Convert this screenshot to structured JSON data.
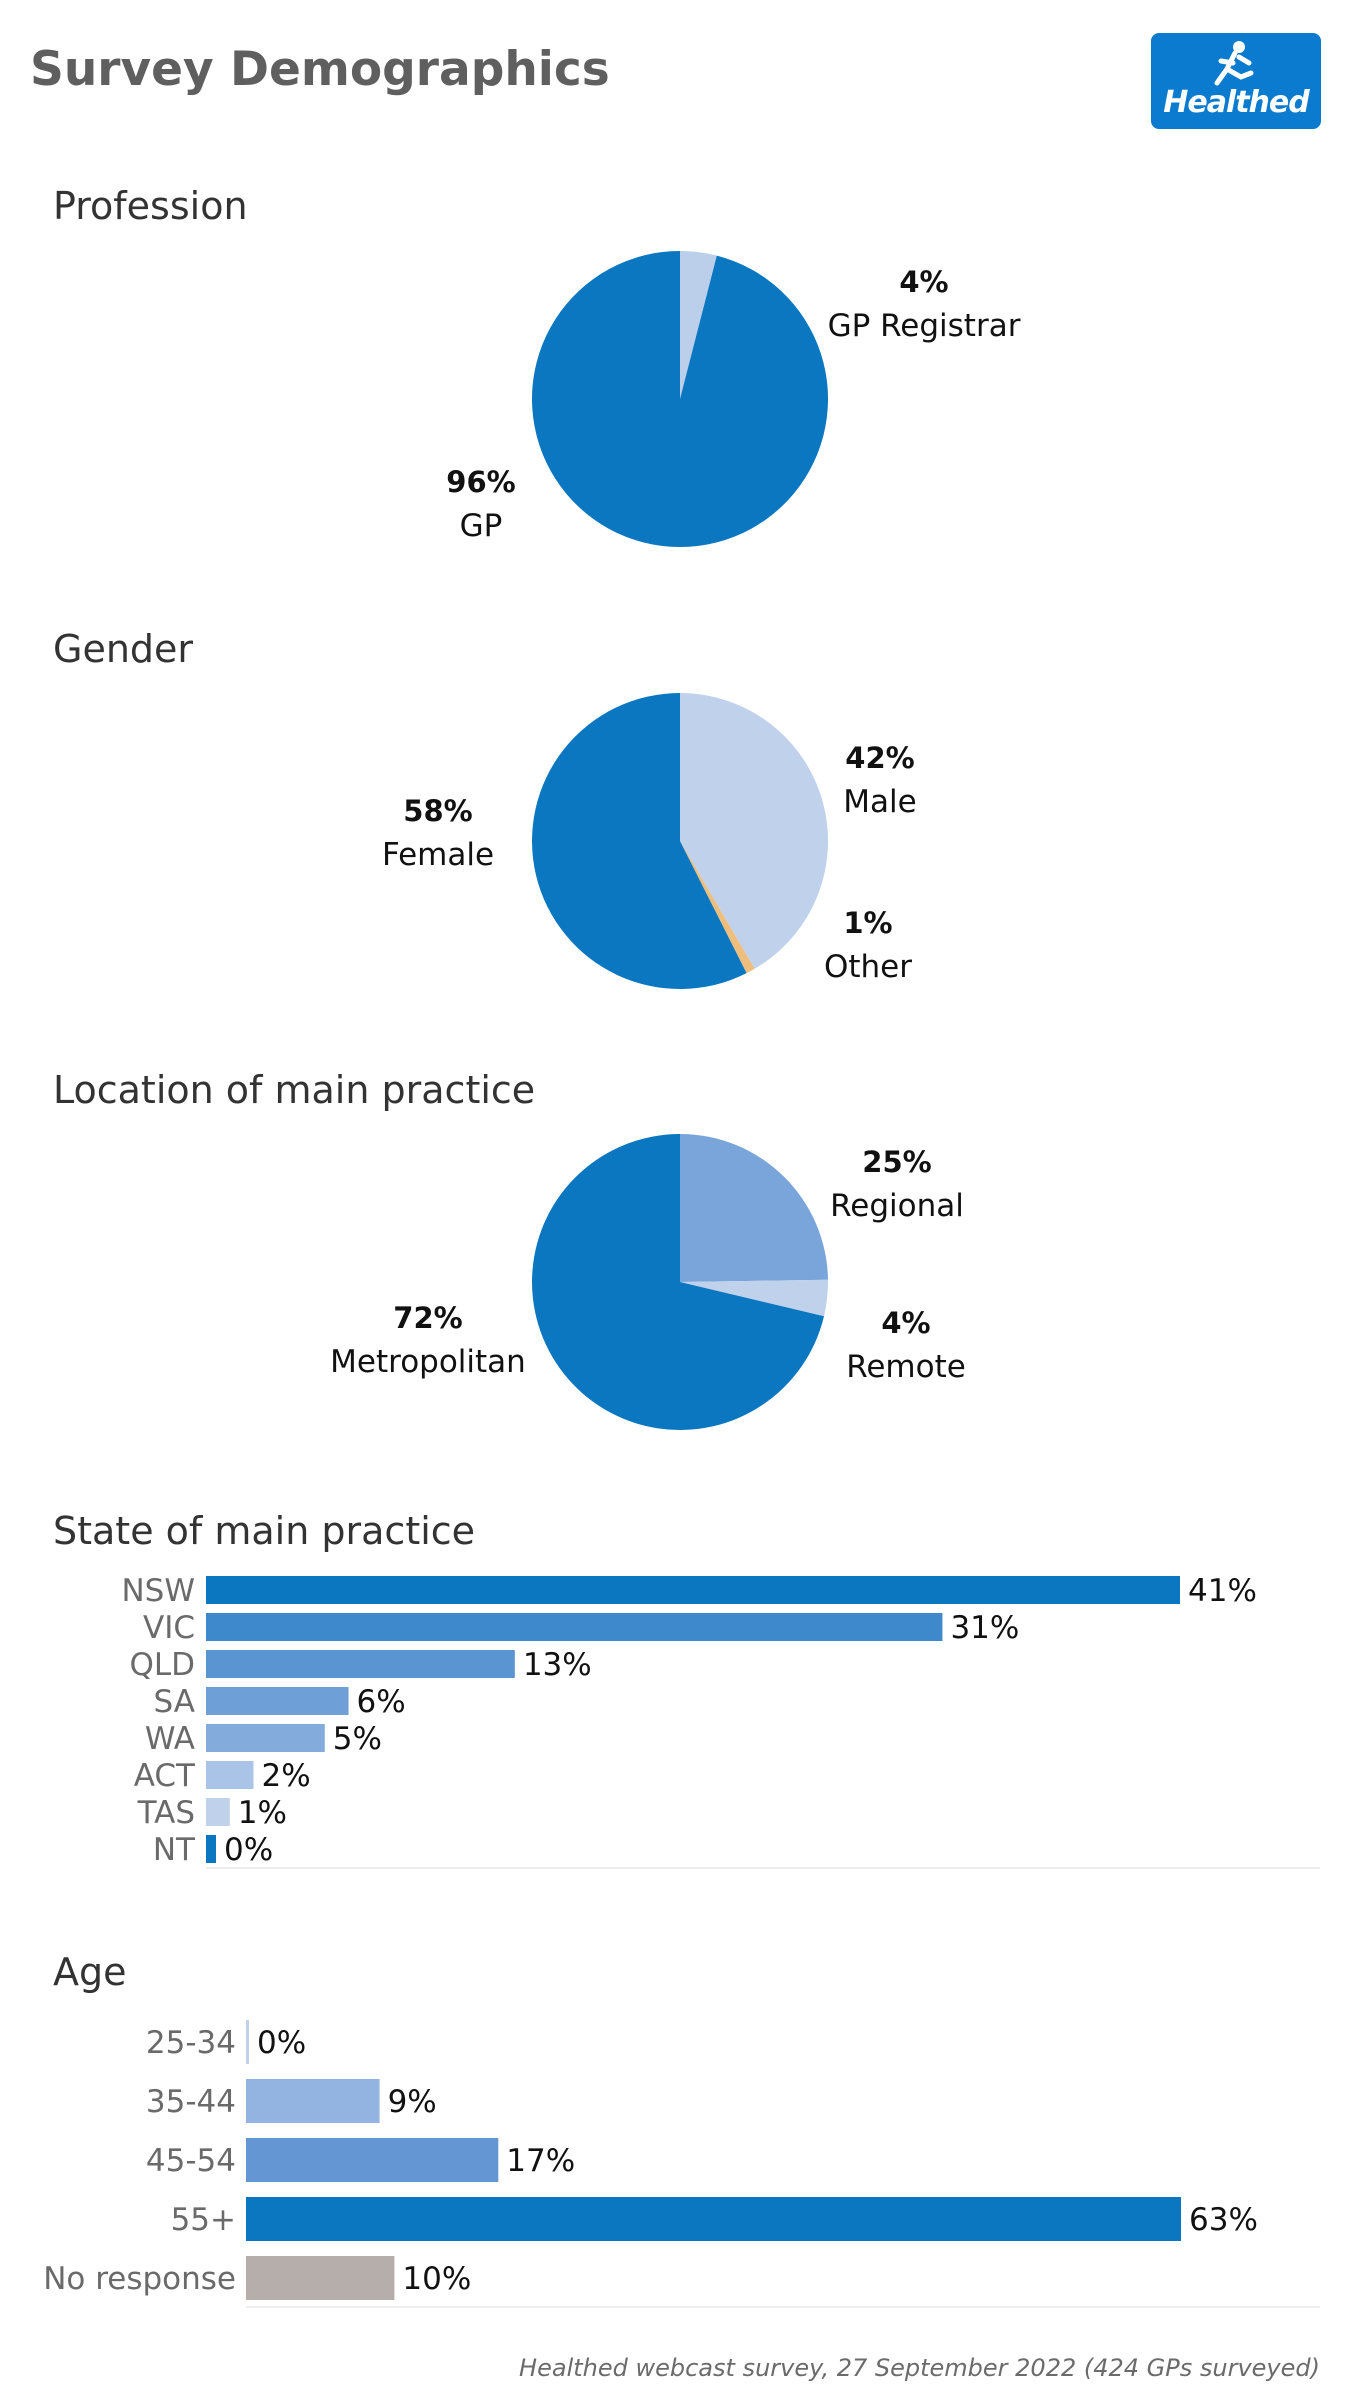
{
  "title": "Survey Demographics",
  "logo": {
    "text": "Healthed",
    "icon": "runner-icon",
    "background": "#0a7bcf"
  },
  "footnote": "Healthed webcast survey, 27 September 2022 (424 GPs surveyed)",
  "chart_data": [
    {
      "type": "pie",
      "title": "Profession",
      "slices": [
        {
          "label": "GP Registrar",
          "value": 4,
          "display": "4%",
          "color": "#bccfea"
        },
        {
          "label": "GP",
          "value": 96,
          "display": "96%",
          "color": "#0a77c0"
        }
      ]
    },
    {
      "type": "pie",
      "title": "Gender",
      "slices": [
        {
          "label": "Male",
          "value": 42,
          "display": "42%",
          "color": "#bfd1eb"
        },
        {
          "label": "Other",
          "value": 1,
          "display": "1%",
          "color": "#f0be7c"
        },
        {
          "label": "Female",
          "value": 58,
          "display": "58%",
          "color": "#0a77c0"
        }
      ]
    },
    {
      "type": "pie",
      "title": "Location of main practice",
      "slices": [
        {
          "label": "Regional",
          "value": 25,
          "display": "25%",
          "color": "#7aa5da"
        },
        {
          "label": "Remote",
          "value": 4,
          "display": "4%",
          "color": "#bfd1eb"
        },
        {
          "label": "Metropolitan",
          "value": 72,
          "display": "72%",
          "color": "#0a77c0"
        }
      ]
    },
    {
      "type": "bar",
      "orientation": "horizontal",
      "title": "State of main practice",
      "categories": [
        "NSW",
        "VIC",
        "QLD",
        "SA",
        "WA",
        "ACT",
        "TAS",
        "NT"
      ],
      "values": [
        41,
        31,
        13,
        6,
        5,
        2,
        1,
        0
      ],
      "labels": [
        "41%",
        "31%",
        "13%",
        "6%",
        "5%",
        "2%",
        "1%",
        "0%"
      ],
      "colors": [
        "#0a77c0",
        "#3e88cc",
        "#5b95d1",
        "#6e9fd6",
        "#83acdc",
        "#a9c4e6",
        "#bfd1eb",
        "#0a77c0"
      ],
      "xlim": [
        0,
        41
      ]
    },
    {
      "type": "bar",
      "orientation": "horizontal",
      "title": "Age",
      "categories": [
        "25-34",
        "35-44",
        "45-54",
        "55+",
        "No response"
      ],
      "values": [
        0,
        9,
        17,
        63,
        10
      ],
      "labels": [
        "0%",
        "9%",
        "17%",
        "63%",
        "10%"
      ],
      "colors": [
        "#bfd1eb",
        "#93b4e0",
        "#6396d2",
        "#0a77c0",
        "#b6aeab"
      ],
      "xlim": [
        0,
        63
      ]
    }
  ]
}
